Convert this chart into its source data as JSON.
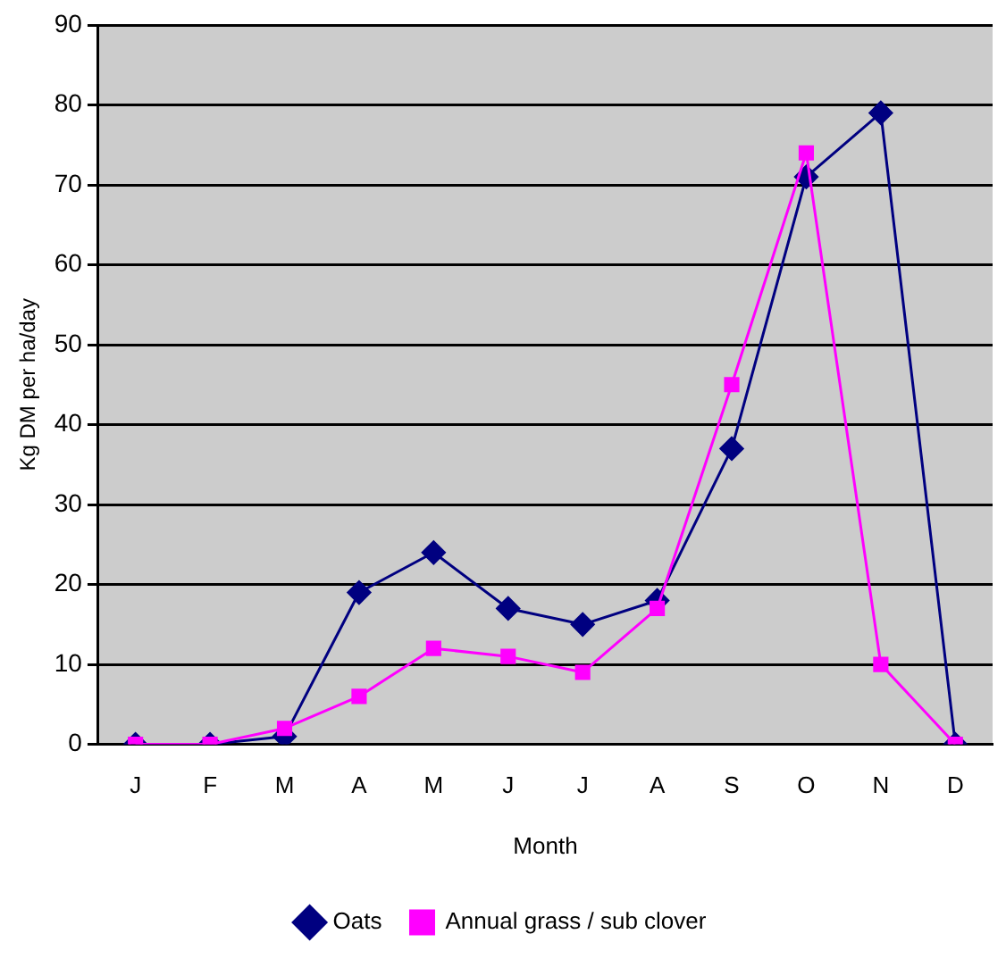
{
  "chart_data": {
    "type": "line",
    "xlabel": "Month",
    "ylabel": "Kg DM per ha/day",
    "categories": [
      "J",
      "F",
      "M",
      "A",
      "M",
      "J",
      "J",
      "A",
      "S",
      "O",
      "N",
      "D"
    ],
    "series": [
      {
        "name": "Oats",
        "color": "#000080",
        "marker": "diamond",
        "values": [
          0,
          0,
          1,
          19,
          24,
          17,
          15,
          18,
          37,
          71,
          79,
          0
        ]
      },
      {
        "name": "Annual grass / sub clover",
        "color": "#ff00ff",
        "marker": "square",
        "values": [
          0,
          0,
          2,
          6,
          12,
          11,
          9,
          17,
          45,
          74,
          10,
          0
        ]
      }
    ],
    "ylim": [
      0,
      90
    ],
    "yticks": [
      0,
      10,
      20,
      30,
      40,
      50,
      60,
      70,
      80,
      90
    ],
    "grid": "y",
    "legend": "bottom"
  }
}
